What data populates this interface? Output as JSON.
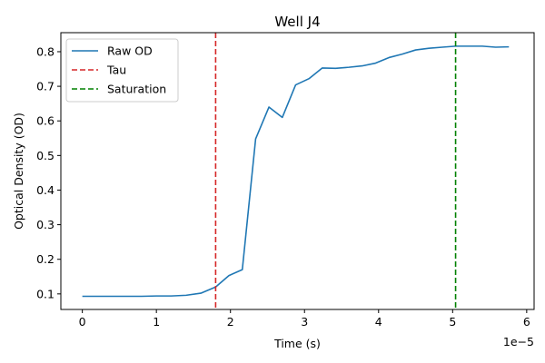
{
  "chart_data": {
    "type": "line",
    "title": "Well J4",
    "xlabel": "Time (s)",
    "ylabel": "Optical Density (OD)",
    "x_offset_text": "1e−5",
    "x_scale": 1e-05,
    "xlim": [
      -0.29,
      6.1
    ],
    "ylim": [
      0.055,
      0.855
    ],
    "x_ticks": [
      0,
      1,
      2,
      3,
      4,
      5,
      6
    ],
    "x_tick_labels": [
      "0",
      "1",
      "2",
      "3",
      "4",
      "5",
      "6"
    ],
    "y_ticks": [
      0.1,
      0.2,
      0.3,
      0.4,
      0.5,
      0.6,
      0.7,
      0.8
    ],
    "y_tick_labels": [
      "0.1",
      "0.2",
      "0.3",
      "0.4",
      "0.5",
      "0.6",
      "0.7",
      "0.8"
    ],
    "grid": false,
    "legend_position": "top-left",
    "series": [
      {
        "name": "Raw OD",
        "color": "#1f77b4",
        "style": "solid",
        "x": [
          0,
          0.2,
          0.4,
          0.6,
          0.8,
          1.0,
          1.2,
          1.4,
          1.6,
          1.8,
          1.98,
          2.16,
          2.34,
          2.52,
          2.7,
          2.88,
          3.06,
          3.24,
          3.42,
          3.6,
          3.78,
          3.96,
          4.14,
          4.32,
          4.5,
          4.68,
          4.86,
          5.04,
          5.22,
          5.4,
          5.58,
          5.76
        ],
        "y": [
          0.093,
          0.093,
          0.093,
          0.093,
          0.093,
          0.094,
          0.094,
          0.096,
          0.102,
          0.12,
          0.153,
          0.17,
          0.548,
          0.64,
          0.61,
          0.704,
          0.722,
          0.753,
          0.752,
          0.755,
          0.759,
          0.767,
          0.783,
          0.793,
          0.805,
          0.81,
          0.813,
          0.816,
          0.816,
          0.816,
          0.813,
          0.814
        ]
      }
    ],
    "vlines": [
      {
        "name": "Tau",
        "x": 1.8,
        "color": "#d62728",
        "style": "dashed"
      },
      {
        "name": "Saturation",
        "x": 5.04,
        "color": "#008000",
        "style": "dashed"
      }
    ]
  }
}
